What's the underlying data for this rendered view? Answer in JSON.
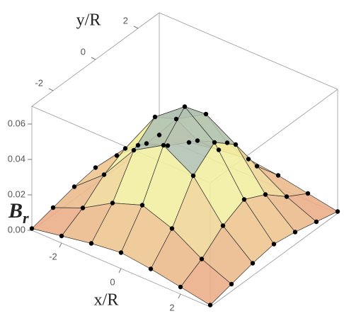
{
  "chart_data": {
    "type": "surface3d",
    "xlabel": "x/R",
    "ylabel": "y/R",
    "zlabel": "B",
    "zlabel_sub": "r",
    "x": [
      -3,
      -2,
      -1,
      0,
      1,
      2,
      3
    ],
    "y": [
      -3,
      -2,
      -1,
      0,
      1,
      2,
      3
    ],
    "z": [
      [
        0.001,
        0.004,
        0.007,
        0.009,
        0.007,
        0.004,
        0.001
      ],
      [
        0.004,
        0.011,
        0.021,
        0.027,
        0.021,
        0.011,
        0.004
      ],
      [
        0.007,
        0.021,
        0.042,
        0.052,
        0.042,
        0.021,
        0.007
      ],
      [
        0.009,
        0.027,
        0.052,
        0.065,
        0.052,
        0.027,
        0.009
      ],
      [
        0.007,
        0.021,
        0.042,
        0.052,
        0.042,
        0.021,
        0.007
      ],
      [
        0.004,
        0.011,
        0.021,
        0.027,
        0.021,
        0.011,
        0.004
      ],
      [
        0.001,
        0.004,
        0.007,
        0.009,
        0.007,
        0.004,
        0.001
      ]
    ],
    "xlim": [
      -3,
      3
    ],
    "ylim": [
      -3,
      3
    ],
    "zlim": [
      0,
      0.07
    ],
    "xticks": [
      -2,
      0,
      2
    ],
    "yticks": [
      -2,
      0,
      2
    ],
    "zticks": [
      {
        "value": 0,
        "label": "0.00"
      },
      0.02,
      0.04,
      0.06
    ],
    "colors": [
      "#e9a283",
      "#f3ef9e",
      "#6f95c8"
    ],
    "point_color": "#000000"
  }
}
